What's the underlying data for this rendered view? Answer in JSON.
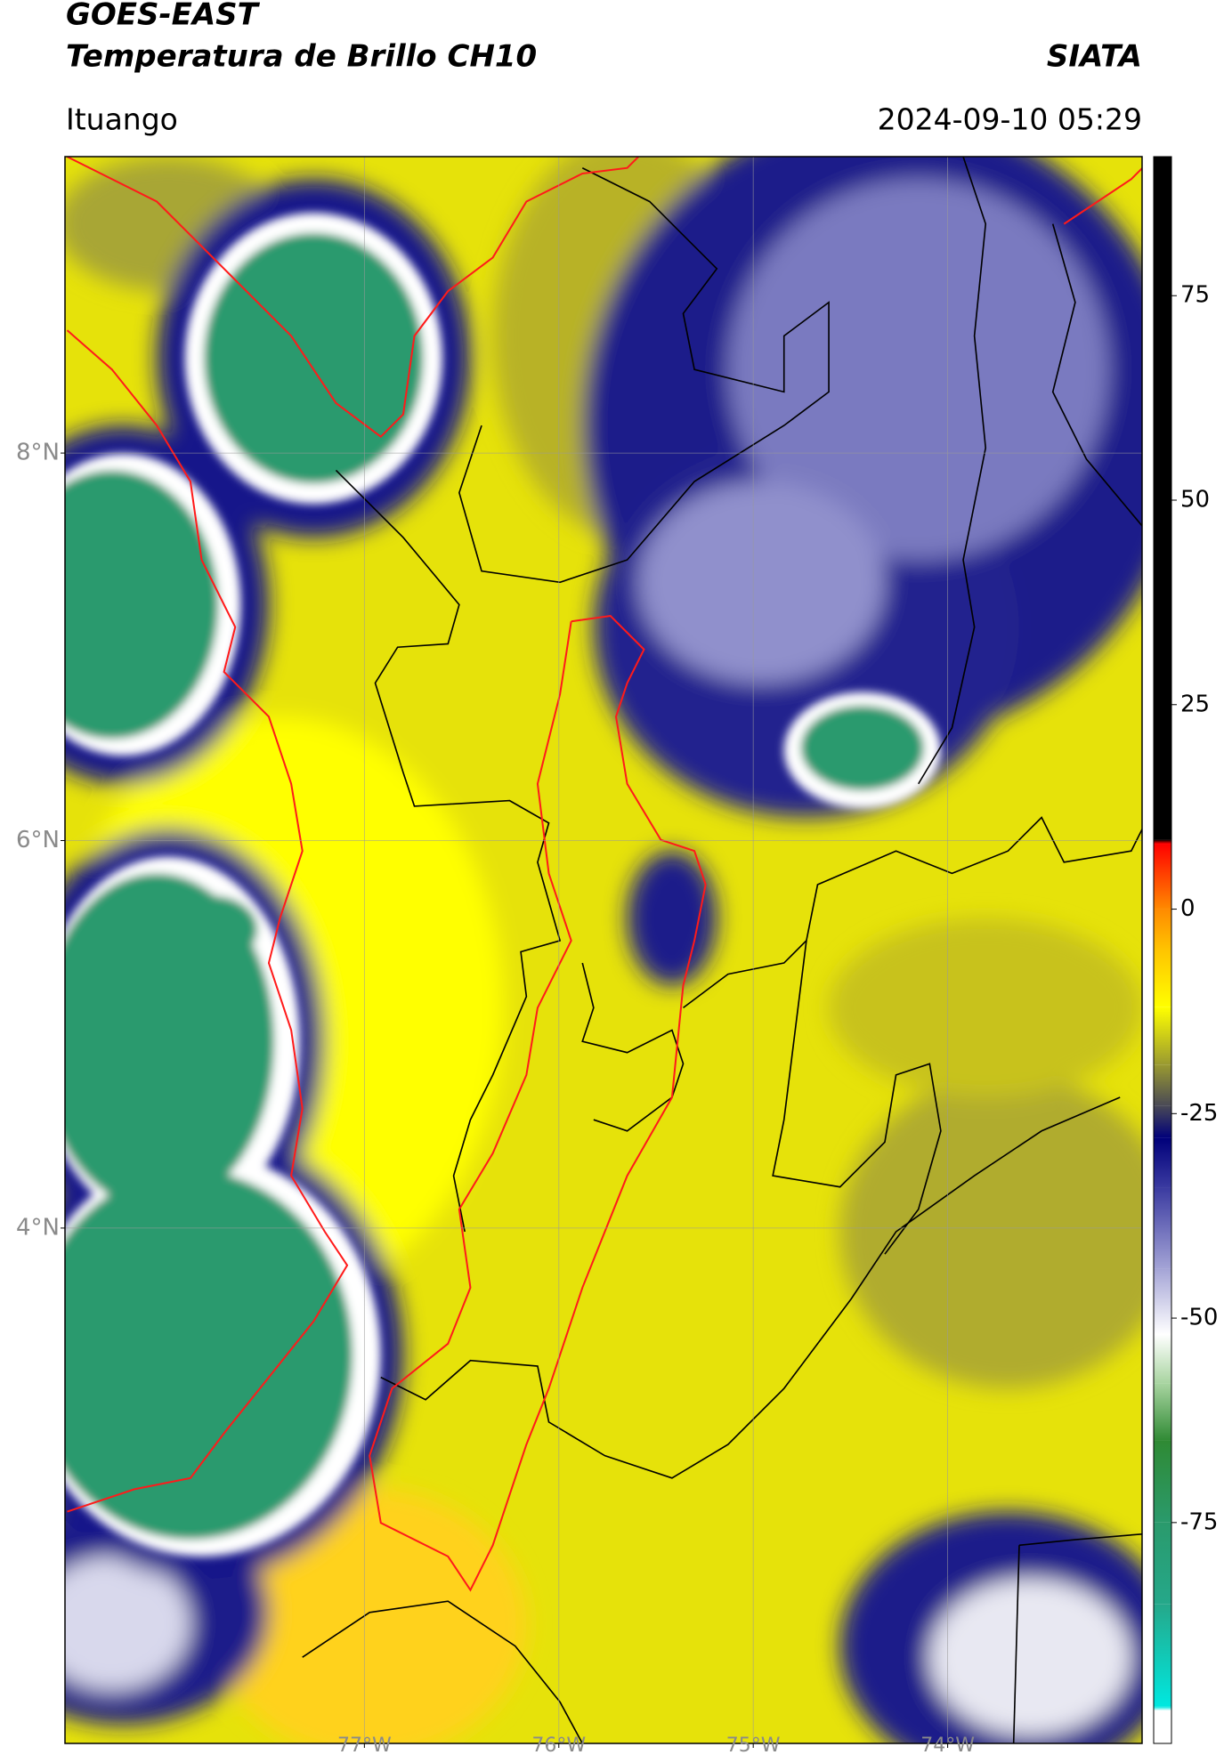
{
  "header": {
    "title": "GOES-EAST",
    "subtitle": "Temperatura de Brillo CH10",
    "source": "SIATA",
    "location": "Ituango",
    "datetime": "2024-09-10 05:29"
  },
  "map": {
    "xlim": [
      -78.54,
      -73.0
    ],
    "ylim": [
      1.34,
      9.53
    ],
    "grid": true,
    "xticks": [
      {
        "value": -77,
        "label": "77°W"
      },
      {
        "value": -76,
        "label": "76°W"
      },
      {
        "value": -75,
        "label": "75°W"
      },
      {
        "value": -74,
        "label": "74°W"
      }
    ],
    "yticks": [
      {
        "value": 4,
        "label": "4°N"
      },
      {
        "value": 6,
        "label": "6°N"
      },
      {
        "value": 8,
        "label": "8°N"
      }
    ]
  },
  "colorbar": {
    "lim": [
      -102,
      92
    ],
    "ticks": [
      -75,
      -50,
      -25,
      0,
      25,
      50,
      75
    ],
    "stops": [
      {
        "value": -102,
        "color": "#ffffff"
      },
      {
        "value": -98,
        "color": "#ffffff"
      },
      {
        "value": -97.5,
        "color": "#00e8e0"
      },
      {
        "value": -85,
        "color": "#25a88a"
      },
      {
        "value": -75,
        "color": "#2a9a6c"
      },
      {
        "value": -65,
        "color": "#2f8a34"
      },
      {
        "value": -58,
        "color": "#a8d4a0"
      },
      {
        "value": -52,
        "color": "#ffffff"
      },
      {
        "value": -44,
        "color": "#a4a4d6"
      },
      {
        "value": -34,
        "color": "#3a3aa0"
      },
      {
        "value": -28,
        "color": "#00007a"
      },
      {
        "value": -24,
        "color": "#4a4a55"
      },
      {
        "value": -19,
        "color": "#9a9a30"
      },
      {
        "value": -12,
        "color": "#ffff00"
      },
      {
        "value": -5,
        "color": "#ffc400"
      },
      {
        "value": 0,
        "color": "#ff8a00"
      },
      {
        "value": 8,
        "color": "#ff0000"
      },
      {
        "value": 8.5,
        "color": "#000000"
      },
      {
        "value": 92,
        "color": "#000000"
      }
    ]
  }
}
